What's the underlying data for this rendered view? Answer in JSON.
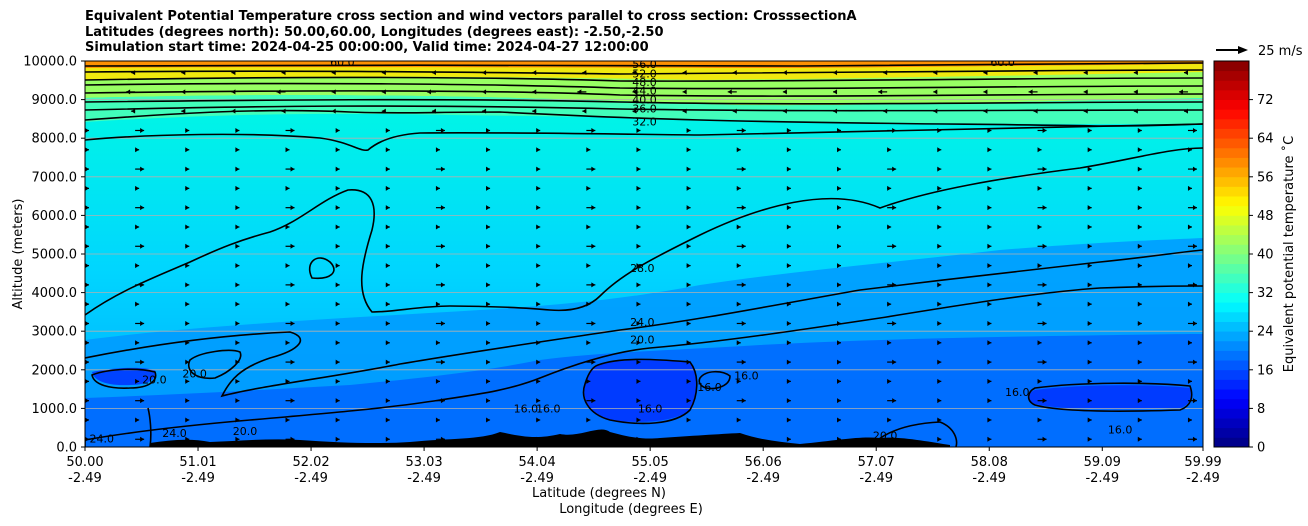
{
  "chart_data": {
    "type": "contourf",
    "title_lines": [
      "Equivalent Potential Temperature cross section and wind vectors parallel to cross section: CrosssectionA",
      "Latitudes (degrees north): 50.00,60.00, Longitudes (degrees east): -2.50,-2.50",
      "Simulation start time: 2024-04-25 00:00:00, Valid time: 2024-04-27 12:00:00"
    ],
    "xlabel_line1": "Latitude (degrees N)",
    "xlabel_line2": "Longitude (degrees E)",
    "ylabel": "Altitude (meters)",
    "xlim": [
      50.0,
      59.99
    ],
    "ylim": [
      0,
      10000
    ],
    "x_ticks": [
      {
        "lat": "50.00",
        "lon": "-2.49",
        "value": 50.0
      },
      {
        "lat": "51.01",
        "lon": "-2.49",
        "value": 51.01
      },
      {
        "lat": "52.02",
        "lon": "-2.49",
        "value": 52.02
      },
      {
        "lat": "53.03",
        "lon": "-2.49",
        "value": 53.03
      },
      {
        "lat": "54.04",
        "lon": "-2.49",
        "value": 54.04
      },
      {
        "lat": "55.05",
        "lon": "-2.49",
        "value": 55.05
      },
      {
        "lat": "56.06",
        "lon": "-2.49",
        "value": 56.06
      },
      {
        "lat": "57.07",
        "lon": "-2.49",
        "value": 57.07
      },
      {
        "lat": "58.08",
        "lon": "-2.49",
        "value": 58.08
      },
      {
        "lat": "59.09",
        "lon": "-2.49",
        "value": 59.09
      },
      {
        "lat": "59.99",
        "lon": "-2.49",
        "value": 59.99
      }
    ],
    "y_ticks": [
      {
        "label": "0.0",
        "value": 0
      },
      {
        "label": "1000.0",
        "value": 1000
      },
      {
        "label": "2000.0",
        "value": 2000
      },
      {
        "label": "3000.0",
        "value": 3000
      },
      {
        "label": "4000.0",
        "value": 4000
      },
      {
        "label": "5000.0",
        "value": 5000
      },
      {
        "label": "6000.0",
        "value": 6000
      },
      {
        "label": "7000.0",
        "value": 7000
      },
      {
        "label": "8000.0",
        "value": 8000
      },
      {
        "label": "9000.0",
        "value": 9000
      },
      {
        "label": "10000.0",
        "value": 10000
      }
    ],
    "colorbar": {
      "label": "Equivalent potential temperature ˚C",
      "min": 0,
      "max": 80,
      "ticks": [
        "0",
        "8",
        "16",
        "24",
        "32",
        "40",
        "48",
        "56",
        "64",
        "72"
      ],
      "tick_values": [
        0,
        8,
        16,
        24,
        32,
        40,
        48,
        56,
        64,
        72
      ]
    },
    "quiver_key": {
      "label": "25 m/s",
      "speed": 25
    },
    "contour_labels": [
      {
        "text": "56.0",
        "x": 55.0,
        "y": 9920
      },
      {
        "text": "52.0",
        "x": 55.0,
        "y": 9680
      },
      {
        "text": "48.0",
        "x": 55.0,
        "y": 9460
      },
      {
        "text": "44.0",
        "x": 55.0,
        "y": 9230
      },
      {
        "text": "40.0",
        "x": 55.0,
        "y": 9000
      },
      {
        "text": "36.0",
        "x": 55.0,
        "y": 8770
      },
      {
        "text": "32.0",
        "x": 55.0,
        "y": 8430
      },
      {
        "text": "60.0",
        "x": 52.3,
        "y": 9980
      },
      {
        "text": "60.0",
        "x": 58.2,
        "y": 9980
      },
      {
        "text": "28.0",
        "x": 54.98,
        "y": 4640
      },
      {
        "text": "24.0",
        "x": 54.98,
        "y": 3240
      },
      {
        "text": "20.0",
        "x": 54.98,
        "y": 2790
      },
      {
        "text": "20.0",
        "x": 50.62,
        "y": 1750
      },
      {
        "text": "20.0",
        "x": 50.98,
        "y": 1900
      },
      {
        "text": "20.0",
        "x": 51.43,
        "y": 420
      },
      {
        "text": "24.0",
        "x": 50.15,
        "y": 220
      },
      {
        "text": "24.0",
        "x": 50.8,
        "y": 360
      },
      {
        "text": "16.0",
        "x": 53.94,
        "y": 1000
      },
      {
        "text": "16.0",
        "x": 54.14,
        "y": 1000
      },
      {
        "text": "16.0",
        "x": 55.05,
        "y": 1000
      },
      {
        "text": "16.0",
        "x": 55.58,
        "y": 1550
      },
      {
        "text": "16.0",
        "x": 55.91,
        "y": 1850
      },
      {
        "text": "20.0",
        "x": 57.15,
        "y": 300
      },
      {
        "text": "16.0",
        "x": 58.33,
        "y": 1430
      },
      {
        "text": "16.0",
        "x": 59.25,
        "y": 450
      }
    ]
  }
}
